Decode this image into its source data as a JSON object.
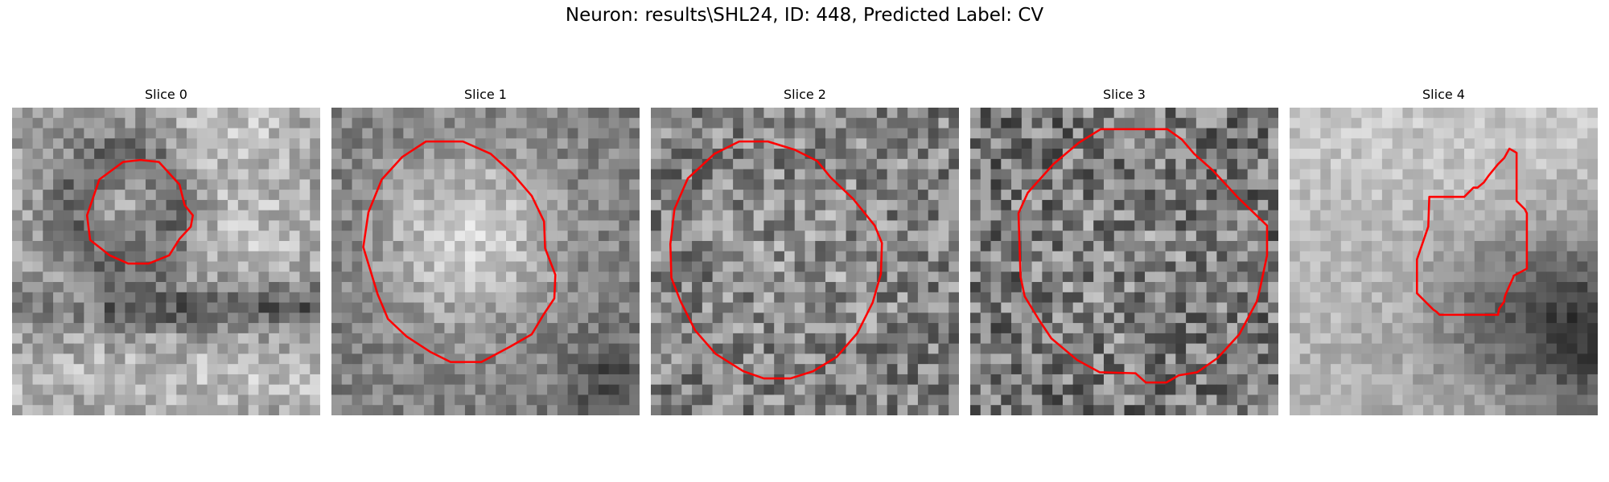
{
  "figure": {
    "title": "Neuron: results\\SHL24, ID: 448, Predicted Label: CV"
  },
  "colors": {
    "contour": "#ff0000",
    "background": "#ffffff"
  },
  "panels": [
    {
      "label": "Slice 0"
    },
    {
      "label": "Slice 1"
    },
    {
      "label": "Slice 2"
    },
    {
      "label": "Slice 3"
    },
    {
      "label": "Slice 4"
    }
  ]
}
